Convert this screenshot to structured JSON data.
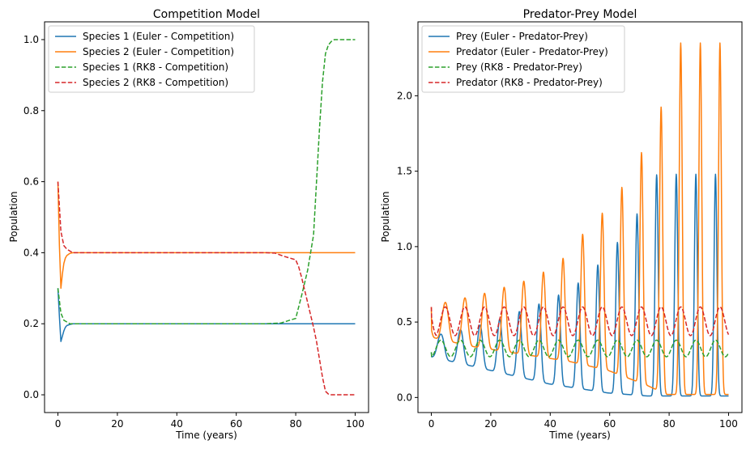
{
  "chart_data": [
    {
      "type": "line",
      "title": "Competition Model",
      "xlabel": "Time (years)",
      "ylabel": "Population",
      "xlim": [
        -4.5,
        104.5
      ],
      "ylim": [
        -0.05,
        1.05
      ],
      "xticks": [
        0,
        20,
        40,
        60,
        80,
        100
      ],
      "yticks": [
        0.0,
        0.2,
        0.4,
        0.6,
        0.8,
        1.0
      ],
      "xtick_labels": [
        "0",
        "20",
        "40",
        "60",
        "80",
        "100"
      ],
      "ytick_labels": [
        "0.0",
        "0.2",
        "0.4",
        "0.6",
        "0.8",
        "1.0"
      ],
      "grid": false,
      "legend_position": "top-left",
      "series": [
        {
          "name": "Species 1 (Euler - Competition)",
          "color": "#1f77b4",
          "style": "solid",
          "x": [
            0,
            0.5,
            1,
            1.5,
            2,
            2.5,
            3,
            4,
            5,
            6,
            8,
            10,
            20,
            40,
            60,
            80,
            100
          ],
          "y": [
            0.3,
            0.22,
            0.15,
            0.165,
            0.18,
            0.19,
            0.195,
            0.198,
            0.2,
            0.2,
            0.2,
            0.2,
            0.2,
            0.2,
            0.2,
            0.2,
            0.2
          ]
        },
        {
          "name": "Species 2 (Euler - Competition)",
          "color": "#ff7f0e",
          "style": "solid",
          "x": [
            0,
            0.5,
            1,
            1.5,
            2,
            2.5,
            3,
            4,
            5,
            6,
            8,
            10,
            20,
            40,
            60,
            80,
            100
          ],
          "y": [
            0.6,
            0.42,
            0.3,
            0.34,
            0.37,
            0.385,
            0.392,
            0.398,
            0.4,
            0.4,
            0.4,
            0.4,
            0.4,
            0.4,
            0.4,
            0.4,
            0.4
          ]
        },
        {
          "name": "Species 1 (RK8 - Competition)",
          "color": "#2ca02c",
          "style": "dashed",
          "x": [
            0,
            1,
            2,
            3,
            4,
            5,
            10,
            20,
            40,
            60,
            70,
            75,
            78,
            80,
            82,
            84,
            86,
            87,
            88,
            89,
            90,
            91,
            92,
            93,
            95,
            100
          ],
          "y": [
            0.3,
            0.23,
            0.21,
            0.205,
            0.2,
            0.2,
            0.2,
            0.2,
            0.2,
            0.2,
            0.2,
            0.202,
            0.21,
            0.215,
            0.28,
            0.35,
            0.45,
            0.6,
            0.75,
            0.88,
            0.96,
            0.985,
            0.995,
            1.0,
            1.0,
            1.0
          ]
        },
        {
          "name": "Species 2 (RK8 - Competition)",
          "color": "#d62728",
          "style": "dashed",
          "x": [
            0,
            1,
            2,
            3,
            4,
            5,
            10,
            20,
            40,
            60,
            70,
            73,
            76,
            78,
            80,
            81,
            82,
            84,
            86,
            87,
            88,
            89,
            90,
            91,
            92,
            95,
            100
          ],
          "y": [
            0.6,
            0.46,
            0.42,
            0.41,
            0.405,
            0.4,
            0.4,
            0.4,
            0.4,
            0.4,
            0.4,
            0.399,
            0.39,
            0.385,
            0.38,
            0.36,
            0.33,
            0.26,
            0.19,
            0.15,
            0.1,
            0.05,
            0.01,
            0.002,
            0.0,
            0.0,
            0.0
          ]
        }
      ]
    },
    {
      "type": "line",
      "title": "Predator-Prey Model",
      "xlabel": "Time (years)",
      "ylabel": "Population",
      "xlim": [
        -4.5,
        104.5
      ],
      "ylim": [
        -0.1,
        2.49
      ],
      "xticks": [
        0,
        20,
        40,
        60,
        80,
        100
      ],
      "yticks": [
        0.0,
        0.5,
        1.0,
        1.5,
        2.0
      ],
      "xtick_labels": [
        "0",
        "20",
        "40",
        "60",
        "80",
        "100"
      ],
      "ytick_labels": [
        "0.0",
        "0.5",
        "1.0",
        "1.5",
        "2.0"
      ],
      "grid": false,
      "legend_position": "top-left",
      "oscillation": {
        "period": 6.6,
        "euler_prey_peaks": [
          0.42,
          0.45,
          0.48,
          0.52,
          0.57,
          0.62,
          0.68,
          0.76,
          0.88,
          1.03,
          1.22,
          1.48
        ],
        "euler_prey_troughs": [
          0.27,
          0.24,
          0.21,
          0.18,
          0.15,
          0.12,
          0.09,
          0.07,
          0.05,
          0.03,
          0.02,
          0.01,
          0.01
        ],
        "euler_predator_peaks": [
          0.63,
          0.66,
          0.69,
          0.73,
          0.77,
          0.83,
          0.92,
          1.08,
          1.22,
          1.39,
          1.62,
          1.92,
          2.35
        ],
        "euler_predator_troughs": [
          0.4,
          0.37,
          0.34,
          0.32,
          0.3,
          0.28,
          0.26,
          0.24,
          0.21,
          0.18,
          0.13,
          0.08,
          0.02
        ],
        "rk8_prey_peak": 0.38,
        "rk8_prey_trough": 0.27,
        "rk8_predator_peak": 0.6,
        "rk8_predator_trough": 0.41
      },
      "series": [
        {
          "name": "Prey (Euler - Predator-Prey)",
          "color": "#1f77b4",
          "style": "solid"
        },
        {
          "name": "Predator (Euler - Predator-Prey)",
          "color": "#ff7f0e",
          "style": "solid"
        },
        {
          "name": "Prey (RK8 - Predator-Prey)",
          "color": "#2ca02c",
          "style": "dashed"
        },
        {
          "name": "Predator (RK8 - Predator-Prey)",
          "color": "#d62728",
          "style": "dashed"
        }
      ]
    }
  ]
}
